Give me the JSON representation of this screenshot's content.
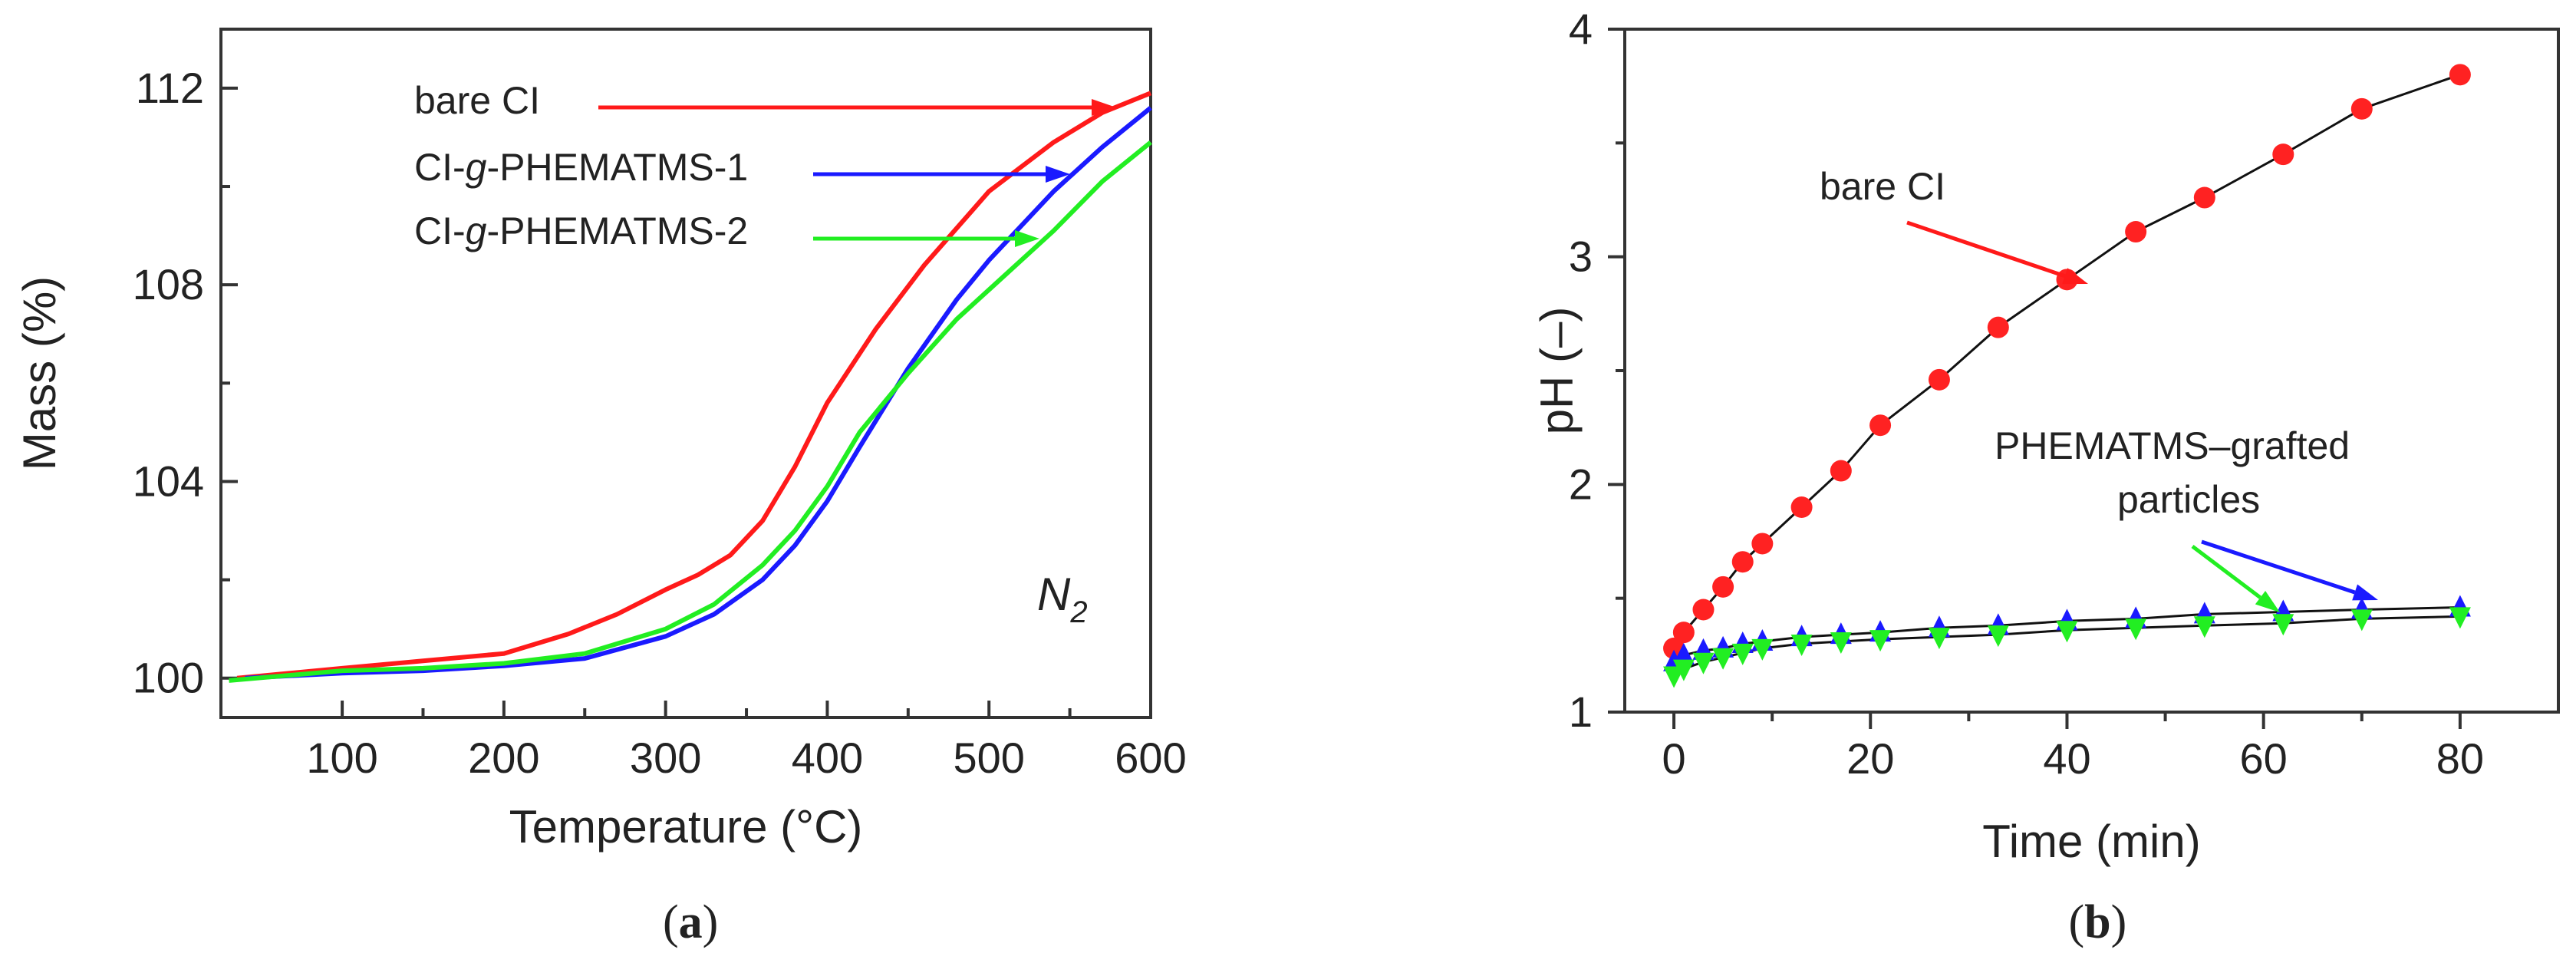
{
  "chart_data": [
    {
      "id": "a",
      "type": "line",
      "panel_label": "a",
      "title": "",
      "xlabel": "Temperature (°C)",
      "ylabel": "Mass (%)",
      "xlim": [
        25,
        600
      ],
      "ylim": [
        99.2,
        113.2
      ],
      "xticks": [
        100,
        200,
        300,
        400,
        500,
        600
      ],
      "yticks": [
        100,
        104,
        108,
        112
      ],
      "annotation": "N",
      "annotation_sub": "2",
      "series": [
        {
          "name": "bare CI",
          "name_parts": [
            "bare CI"
          ],
          "color": "#ff1a1a",
          "x": [
            35,
            100,
            150,
            200,
            240,
            270,
            300,
            320,
            340,
            360,
            380,
            400,
            430,
            460,
            500,
            540,
            570,
            600
          ],
          "y": [
            100.0,
            100.2,
            100.35,
            100.5,
            100.9,
            101.3,
            101.8,
            102.1,
            102.5,
            103.2,
            104.3,
            105.6,
            107.1,
            108.4,
            109.9,
            110.9,
            111.5,
            111.9
          ]
        },
        {
          "name": "CI-g-PHEMATMS-1",
          "name_parts": [
            "CI-",
            "g",
            "-PHEMATMS-1"
          ],
          "color": "#1a1aff",
          "x": [
            40,
            100,
            150,
            200,
            250,
            300,
            330,
            360,
            380,
            400,
            420,
            450,
            480,
            500,
            540,
            570,
            600
          ],
          "y": [
            100.0,
            100.1,
            100.15,
            100.25,
            100.4,
            100.85,
            101.3,
            102.0,
            102.7,
            103.6,
            104.7,
            106.3,
            107.7,
            108.5,
            109.9,
            110.8,
            111.6
          ]
        },
        {
          "name": "CI-g-PHEMATMS-2",
          "name_parts": [
            "CI-",
            "g",
            "-PHEMATMS-2"
          ],
          "color": "#22ee22",
          "x": [
            30,
            100,
            150,
            200,
            250,
            300,
            330,
            360,
            380,
            400,
            420,
            450,
            480,
            500,
            540,
            570,
            600
          ],
          "y": [
            99.95,
            100.15,
            100.2,
            100.3,
            100.5,
            101.0,
            101.5,
            102.3,
            103.0,
            103.9,
            105.0,
            106.2,
            107.3,
            107.9,
            109.1,
            110.1,
            110.9
          ]
        }
      ]
    },
    {
      "id": "b",
      "type": "scatter",
      "panel_label": "b",
      "title": "",
      "xlabel": "Time (min)",
      "ylabel": "pH (–)",
      "xlim": [
        -5,
        90
      ],
      "ylim": [
        1.0,
        4.0
      ],
      "xticks": [
        0,
        20,
        40,
        60,
        80
      ],
      "yticks": [
        1,
        2,
        3,
        4
      ],
      "annotations": [
        "bare CI",
        "PHEMATMS–grafted",
        "particles"
      ],
      "series": [
        {
          "name": "bare CI",
          "marker": "circle",
          "color": "#ff2222",
          "x": [
            0,
            1,
            3,
            5,
            7,
            9,
            13,
            17,
            21,
            27,
            33,
            40,
            47,
            54,
            62,
            70,
            80
          ],
          "y": [
            1.28,
            1.35,
            1.45,
            1.55,
            1.66,
            1.74,
            1.9,
            2.06,
            2.26,
            2.46,
            2.69,
            2.9,
            3.11,
            3.26,
            3.45,
            3.65,
            3.8
          ]
        },
        {
          "name": "PHEMATMS–grafted (1)",
          "marker": "triangle-up",
          "color": "#1a1aff",
          "x": [
            0,
            1,
            3,
            5,
            7,
            9,
            13,
            17,
            21,
            27,
            33,
            40,
            47,
            54,
            62,
            70,
            80
          ],
          "y": [
            1.22,
            1.25,
            1.27,
            1.28,
            1.3,
            1.31,
            1.33,
            1.34,
            1.35,
            1.37,
            1.38,
            1.4,
            1.41,
            1.43,
            1.44,
            1.45,
            1.46
          ]
        },
        {
          "name": "PHEMATMS–grafted (2)",
          "marker": "triangle-down",
          "color": "#22ee22",
          "x": [
            0,
            1,
            3,
            5,
            7,
            9,
            13,
            17,
            21,
            27,
            33,
            40,
            47,
            54,
            62,
            70,
            80
          ],
          "y": [
            1.16,
            1.19,
            1.22,
            1.24,
            1.26,
            1.28,
            1.3,
            1.31,
            1.32,
            1.33,
            1.34,
            1.36,
            1.37,
            1.38,
            1.39,
            1.41,
            1.42
          ]
        }
      ]
    }
  ]
}
